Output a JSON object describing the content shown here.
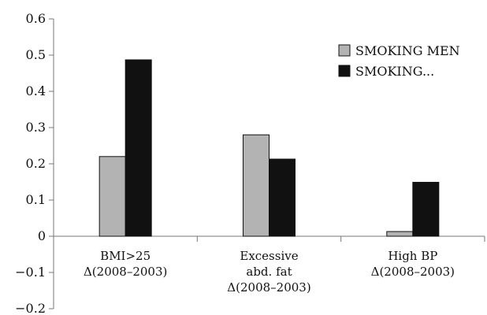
{
  "chart_data": {
    "type": "bar",
    "title": "",
    "xlabel": "",
    "ylabel": "",
    "ylim": [
      -0.2,
      0.6
    ],
    "yticks": [
      -0.2,
      -0.1,
      0,
      0.1,
      0.2,
      0.3,
      0.4,
      0.5,
      0.6
    ],
    "ytick_labels": [
      "−0.2",
      "−0.1",
      "0",
      "0.1",
      "0.2",
      "0.3",
      "0.4",
      "0.5",
      "0.6"
    ],
    "grid": false,
    "legend_position": "top-right",
    "categories": [
      [
        "BMI>25",
        "Δ(2008–2003)"
      ],
      [
        "Excessive",
        "abd. fat",
        "Δ(2008–2003)"
      ],
      [
        "High BP",
        "Δ(2008–2003)"
      ]
    ],
    "series": [
      {
        "name": "SMOKING MEN",
        "color": "#b3b3b3",
        "values": [
          0.22,
          0.28,
          0.013
        ]
      },
      {
        "name": "SMOKING...",
        "color": "#111111",
        "values": [
          0.487,
          0.213,
          0.149
        ]
      }
    ]
  }
}
